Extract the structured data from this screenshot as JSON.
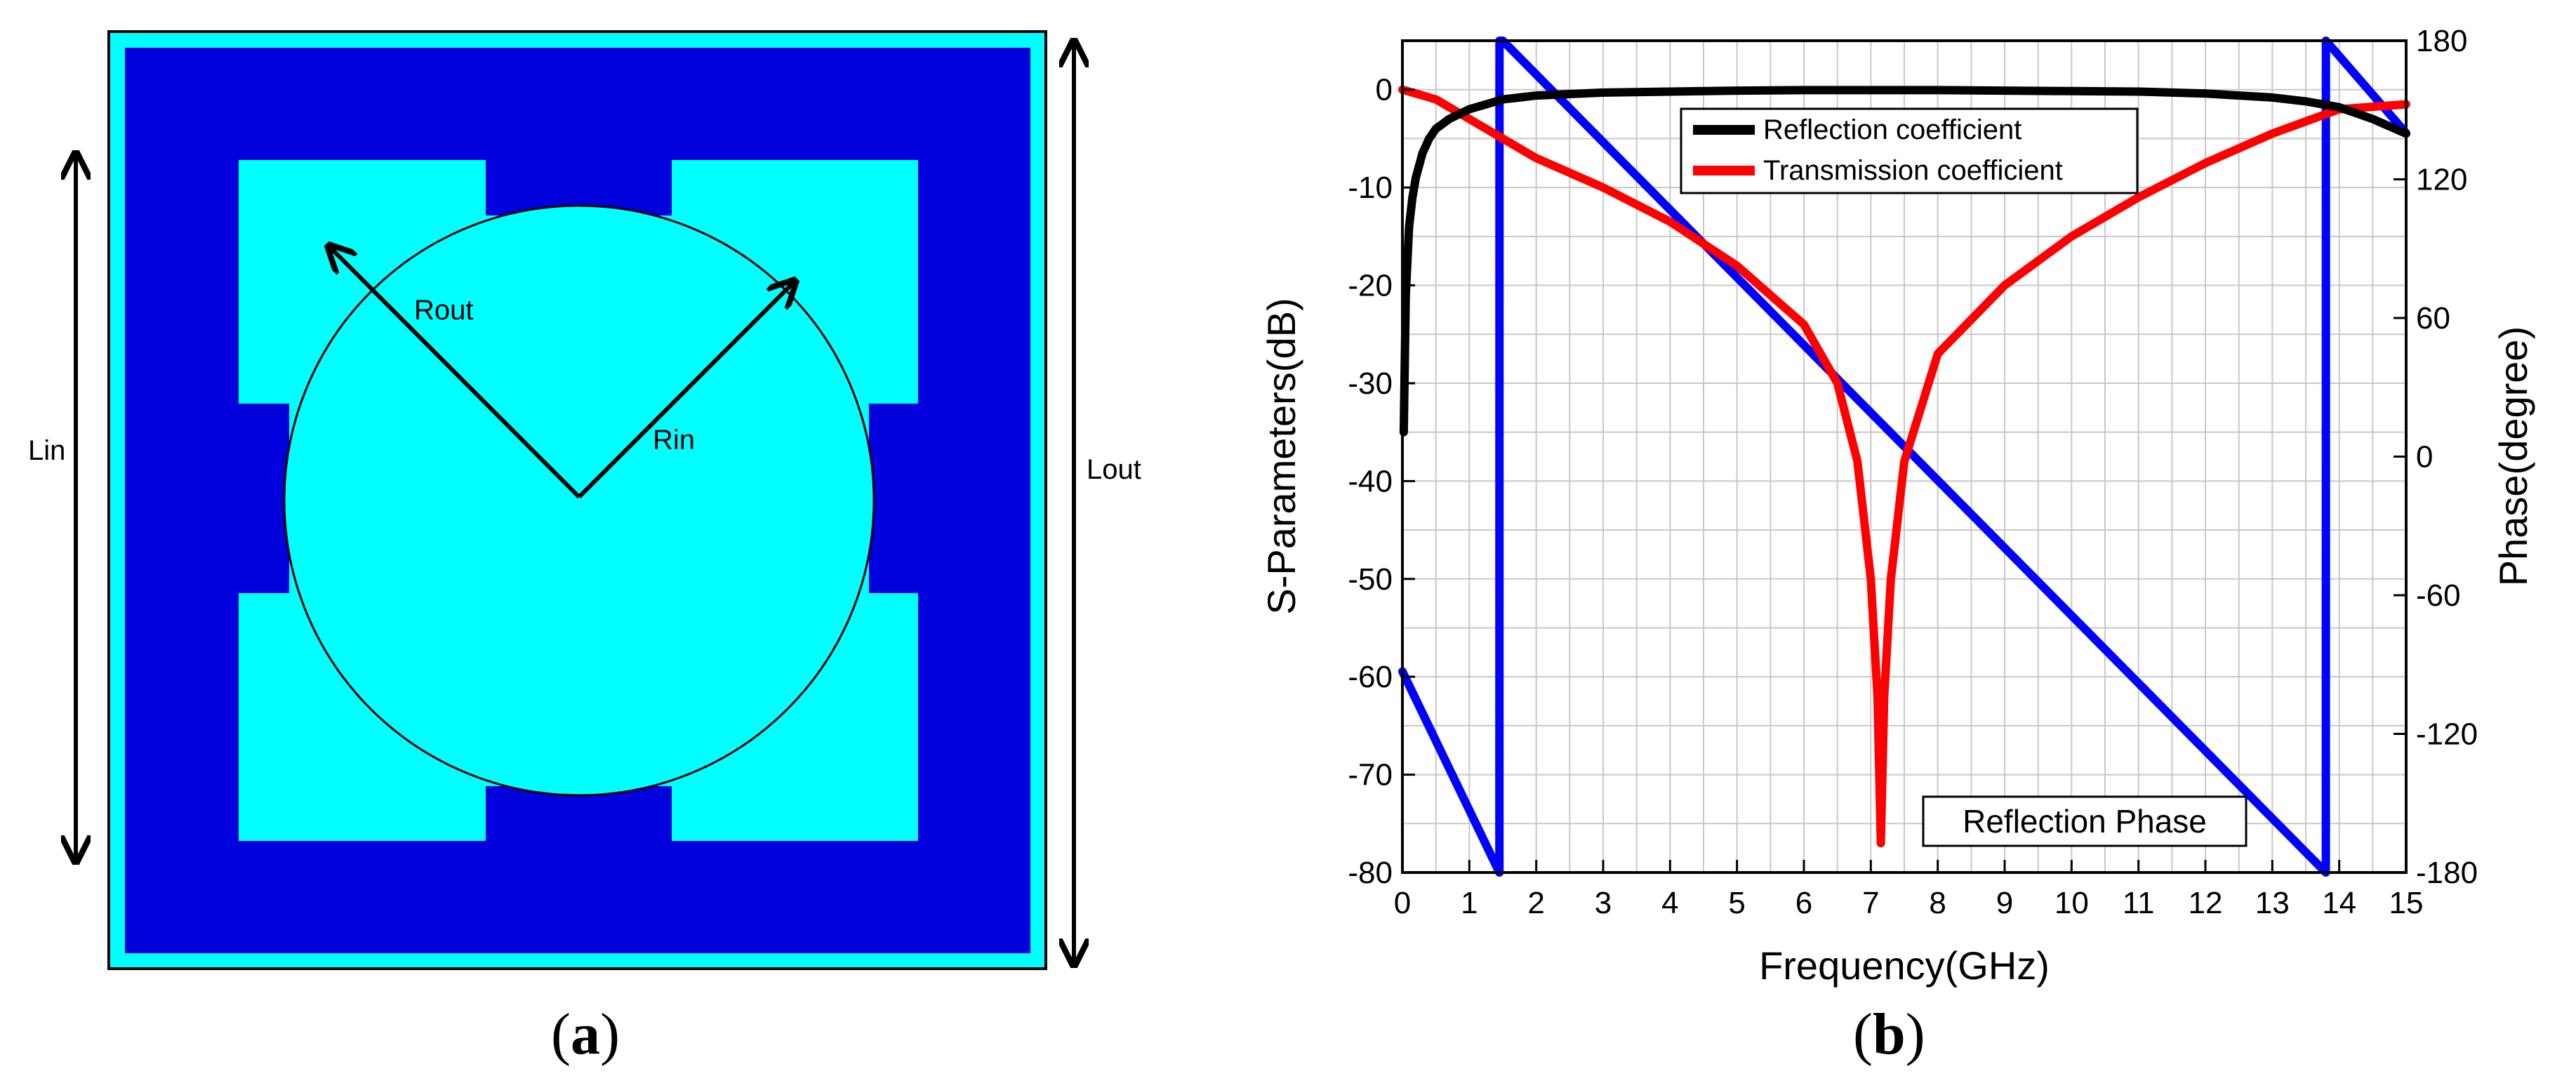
{
  "panel_a": {
    "labels": {
      "rout": "Rout",
      "rin": "Rin",
      "lin": "Lin",
      "lout": "Lout"
    },
    "colors": {
      "substrate": "#00ffff",
      "metal": "#0000dd"
    }
  },
  "captions": {
    "a": {
      "open": "(",
      "letter": "a",
      "close": ")"
    },
    "b": {
      "open": "(",
      "letter": "b",
      "close": ")"
    }
  },
  "chart_data": {
    "type": "line",
    "xlabel": "Frequency(GHz)",
    "ylabel": "S-Parameters(dB)",
    "y2label": "Phase(degree)",
    "xlim": [
      0,
      15
    ],
    "ylim": [
      -80,
      5
    ],
    "y2lim": [
      -180,
      180
    ],
    "x_ticks": [
      0,
      1,
      2,
      3,
      4,
      5,
      6,
      7,
      8,
      9,
      10,
      11,
      12,
      13,
      14,
      15
    ],
    "y_ticks": [
      0,
      -10,
      -20,
      -30,
      -40,
      -50,
      -60,
      -70,
      -80
    ],
    "y2_ticks": [
      180,
      120,
      60,
      0,
      -60,
      -120,
      -180
    ],
    "grid": true,
    "legend_position": "top-center",
    "annotation": "Reflection Phase",
    "series": [
      {
        "name": "Reflection coefficient",
        "axis": "left",
        "color": "#000000",
        "x": [
          0.02,
          0.05,
          0.1,
          0.15,
          0.2,
          0.3,
          0.4,
          0.5,
          0.7,
          1.0,
          1.5,
          2,
          3,
          4,
          5,
          6,
          7,
          8,
          9,
          10,
          11,
          12,
          13,
          13.5,
          14,
          14.5,
          15
        ],
        "y": [
          -35,
          -21,
          -14,
          -11,
          -9,
          -6.5,
          -5,
          -4,
          -3,
          -2,
          -1,
          -0.6,
          -0.3,
          -0.2,
          -0.1,
          -0.05,
          -0.05,
          -0.05,
          -0.1,
          -0.15,
          -0.2,
          -0.4,
          -0.8,
          -1.2,
          -1.8,
          -3,
          -4.5
        ]
      },
      {
        "name": "Transmission coefficient",
        "axis": "left",
        "color": "#ff0000",
        "x": [
          0,
          0.5,
          1,
          1.5,
          2,
          3,
          4,
          5,
          6,
          6.5,
          6.8,
          7.0,
          7.1,
          7.15,
          7.2,
          7.3,
          7.5,
          8,
          9,
          10,
          11,
          12,
          13,
          14,
          15
        ],
        "y": [
          0,
          -1,
          -3,
          -5,
          -7,
          -10,
          -13.5,
          -18,
          -24,
          -30,
          -38,
          -50,
          -62,
          -77,
          -62,
          -50,
          -38,
          -27,
          -20,
          -15,
          -11,
          -7.5,
          -4.5,
          -2,
          -1.5
        ]
      },
      {
        "name": "Reflection Phase",
        "axis": "right",
        "color": "#0000ff",
        "x": [
          0,
          1.45,
          1.451,
          1.5,
          13.8,
          13.801,
          15
        ],
        "y": [
          -93,
          -180,
          180,
          180,
          -180,
          180,
          140
        ]
      }
    ]
  }
}
